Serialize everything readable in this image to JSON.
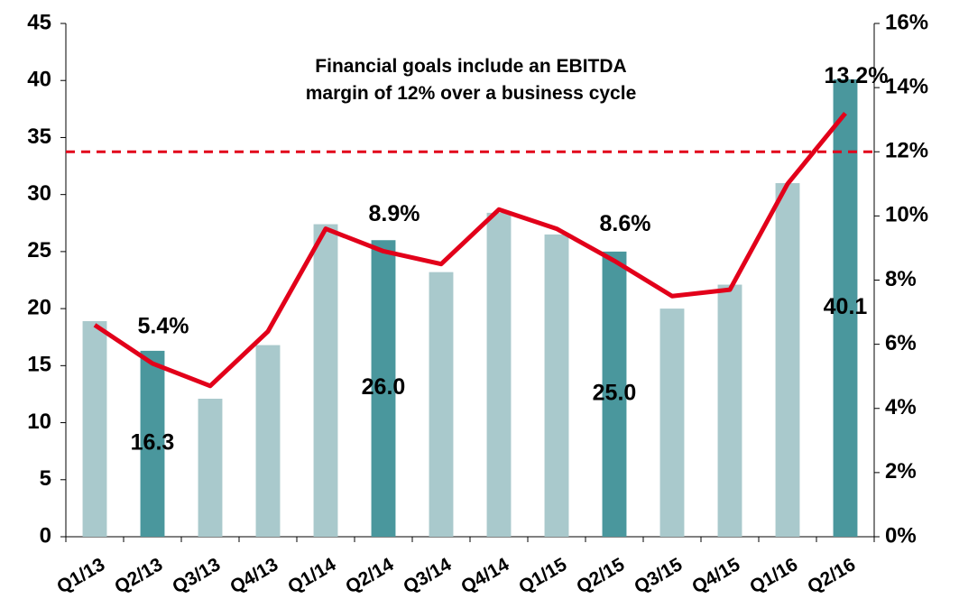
{
  "chart_data": {
    "type": "bar_line",
    "annotation": "Financial goals include an EBITDA margin of 12% over a business cycle",
    "categories": [
      "Q1/13",
      "Q2/13",
      "Q3/13",
      "Q4/13",
      "Q1/14",
      "Q2/14",
      "Q3/14",
      "Q4/14",
      "Q1/15",
      "Q2/15",
      "Q3/15",
      "Q4/15",
      "Q1/16",
      "Q2/16"
    ],
    "series": [
      {
        "type": "bar",
        "values": [
          18.9,
          16.3,
          12.1,
          16.8,
          27.4,
          26.0,
          23.2,
          28.4,
          26.5,
          25.0,
          20.0,
          22.1,
          31.0,
          40.1
        ],
        "colors": [
          "#a9c9cc",
          "#4a979d",
          "#a9c9cc",
          "#a9c9cc",
          "#a9c9cc",
          "#4a979d",
          "#a9c9cc",
          "#a9c9cc",
          "#a9c9cc",
          "#4a979d",
          "#a9c9cc",
          "#a9c9cc",
          "#a9c9cc",
          "#4a979d"
        ],
        "value_labels": [
          null,
          "16.3",
          null,
          null,
          null,
          "26.0",
          null,
          null,
          null,
          "25.0",
          null,
          null,
          null,
          "40.1"
        ]
      },
      {
        "type": "line",
        "axis": "y2",
        "color": "#e2001a",
        "values": [
          6.6,
          5.4,
          4.7,
          6.4,
          9.6,
          8.9,
          8.5,
          10.2,
          9.6,
          8.6,
          7.5,
          7.7,
          11.0,
          13.2
        ],
        "value_labels": [
          null,
          "5.4%",
          null,
          null,
          null,
          "8.9%",
          null,
          null,
          null,
          "8.6%",
          null,
          null,
          null,
          "13.2%"
        ]
      }
    ],
    "reference_line": {
      "value": 12,
      "axis": "y2",
      "color": "#e2001a"
    },
    "ylim": [
      0,
      45
    ],
    "yticks": [
      0,
      5,
      10,
      15,
      20,
      25,
      30,
      35,
      40,
      45
    ],
    "y2lim": [
      0,
      16
    ],
    "y2ticks": [
      {
        "value": 0,
        "label": "0%"
      },
      {
        "value": 2,
        "label": "2%"
      },
      {
        "value": 4,
        "label": "4%"
      },
      {
        "value": 6,
        "label": "6%"
      },
      {
        "value": 8,
        "label": "8%"
      },
      {
        "value": 10,
        "label": "10%"
      },
      {
        "value": 12,
        "label": "12%"
      },
      {
        "value": 14,
        "label": "14%"
      },
      {
        "value": 16,
        "label": "16%"
      }
    ]
  }
}
